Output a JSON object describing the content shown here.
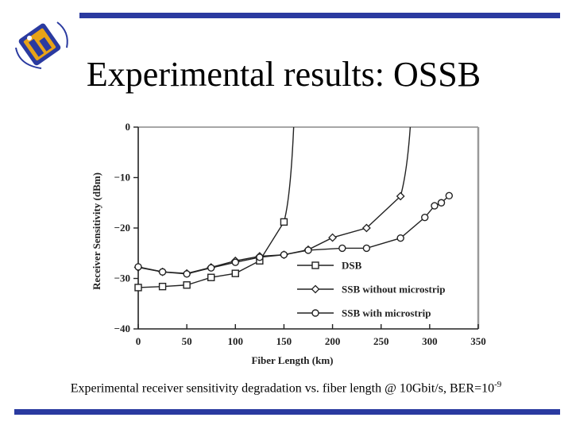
{
  "slide": {
    "title": "Experimental results: OSSB",
    "caption_main": "Experimental receiver sensitivity degradation vs. fiber length @ 10Gbit/s, BER=10",
    "caption_exp": "-9"
  },
  "logo": {
    "name": "university-logo",
    "colors": [
      "#2a3aa0",
      "#e8a317"
    ]
  },
  "chart_data": {
    "type": "line",
    "title": "",
    "xlabel": "Fiber Length (km)",
    "ylabel": "Receiver Sensitivity (dBm)",
    "xlim": [
      0,
      350
    ],
    "ylim": [
      -40,
      0
    ],
    "xticks": [
      0,
      50,
      100,
      150,
      200,
      250,
      300,
      350
    ],
    "yticks": [
      0,
      -10,
      -20,
      -30,
      -40
    ],
    "ytick_labels": [
      "0",
      "−10",
      "−20",
      "−30",
      "−40"
    ],
    "grid": false,
    "legend_position": "bottom-right",
    "series": [
      {
        "name": "DSB",
        "marker": "square",
        "x": [
          0,
          25,
          50,
          75,
          100,
          125,
          150
        ],
        "y": [
          -31.8,
          -31.6,
          -31.3,
          -29.8,
          -29.0,
          -26.5,
          -18.8
        ],
        "asymptote_x": 160
      },
      {
        "name": "SSB without microstrip",
        "marker": "diamond",
        "x": [
          0,
          25,
          50,
          75,
          100,
          125,
          150,
          175,
          200,
          235,
          270
        ],
        "y": [
          -27.8,
          -28.7,
          -29.0,
          -27.8,
          -26.5,
          -25.6,
          -25.3,
          -24.3,
          -21.9,
          -20.0,
          -13.7
        ],
        "asymptote_x": 280
      },
      {
        "name": "SSB with microstrip",
        "marker": "circle",
        "x": [
          0,
          25,
          50,
          75,
          100,
          125,
          150,
          175,
          210,
          235,
          270,
          295,
          305,
          312,
          320
        ],
        "y": [
          -27.7,
          -28.7,
          -29.1,
          -27.9,
          -26.8,
          -25.8,
          -25.3,
          -24.4,
          -24.0,
          -24.0,
          -22.0,
          -17.9,
          -15.6,
          -15.0,
          -13.6
        ]
      }
    ]
  }
}
